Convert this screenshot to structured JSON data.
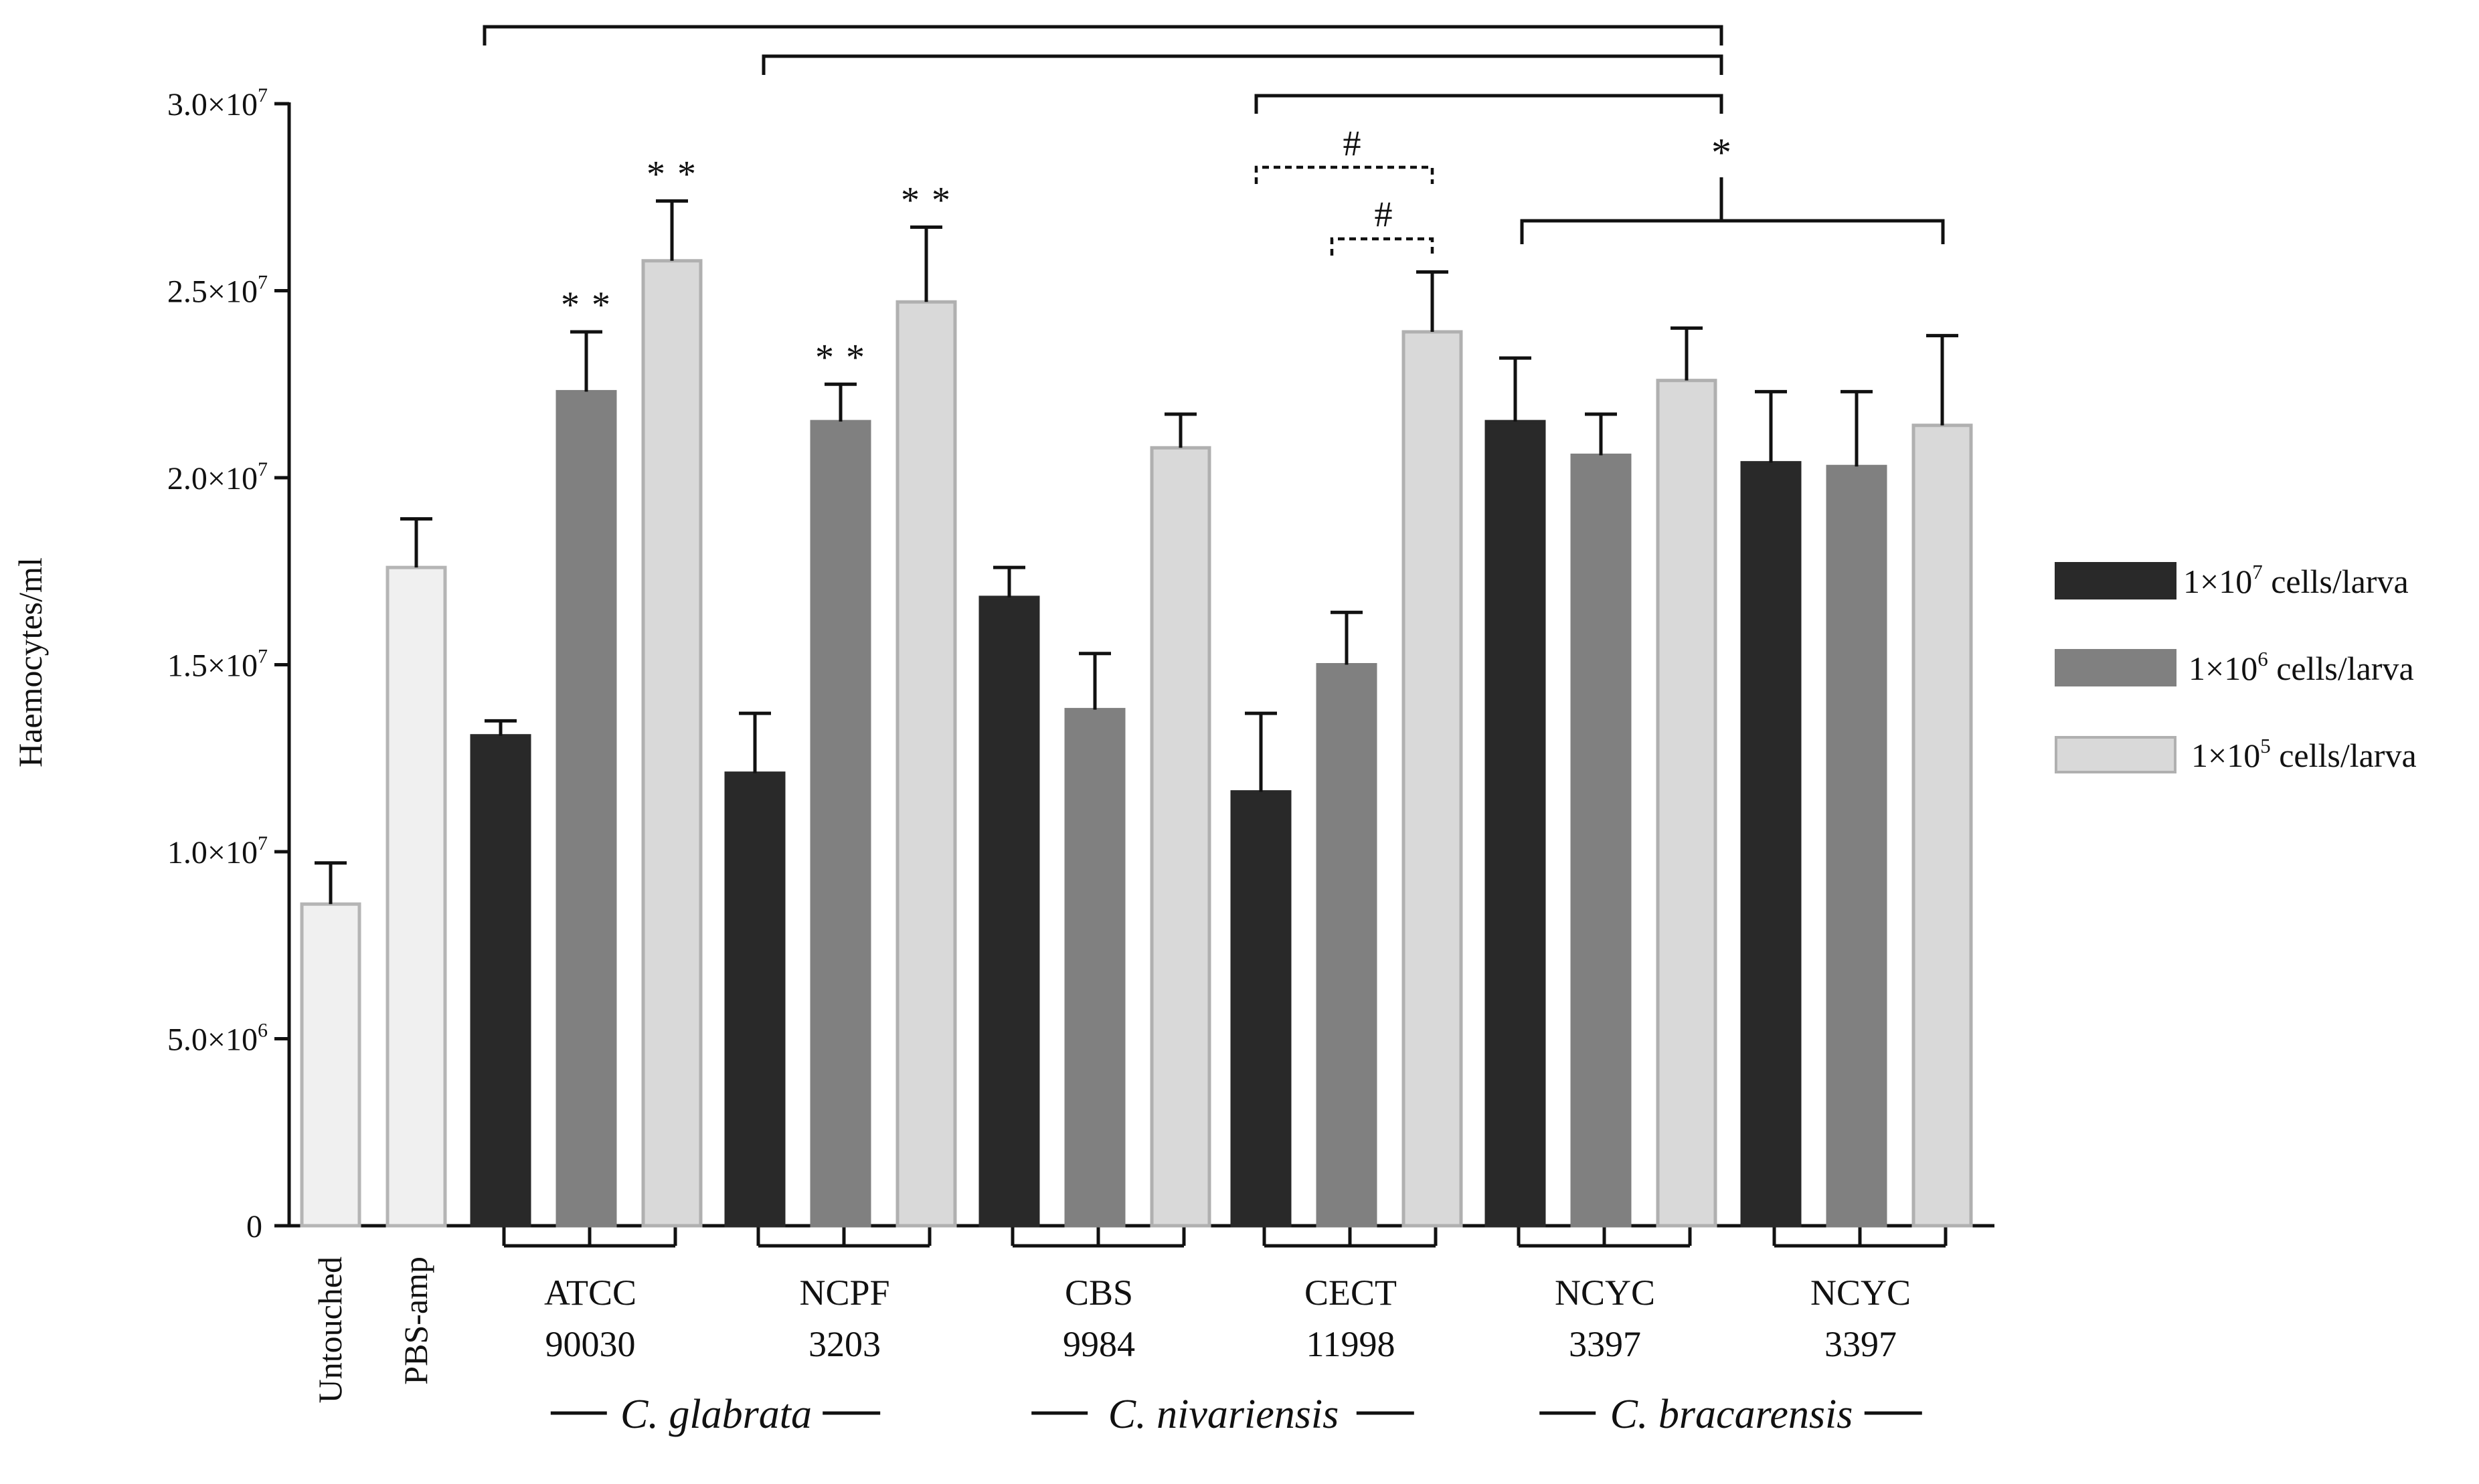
{
  "chart_data": {
    "type": "bar",
    "ylabel": "Haemocytes/ml",
    "ylim": [
      0,
      30000000
    ],
    "yticks": [
      {
        "value": 0,
        "mantissa": "0",
        "exp": ""
      },
      {
        "value": 5000000,
        "mantissa": "5.0",
        "exp": "6"
      },
      {
        "value": 10000000,
        "mantissa": "1.0",
        "exp": "7"
      },
      {
        "value": 15000000,
        "mantissa": "1.5",
        "exp": "7"
      },
      {
        "value": 20000000,
        "mantissa": "2.0",
        "exp": "7"
      },
      {
        "value": 25000000,
        "mantissa": "2.5",
        "exp": "7"
      },
      {
        "value": 30000000,
        "mantissa": "3.0",
        "exp": "7"
      }
    ],
    "times_sign": "×10",
    "colors": {
      "s1": "#292929",
      "s2": "#808080",
      "s3": "#d9d9d9",
      "control": "#f0f0f0",
      "control_edge": "#b5b5b5"
    },
    "legend": [
      {
        "prefix": "1×10",
        "exp": "7",
        "suffix": " cells/larva",
        "series": "s1"
      },
      {
        "prefix": "1×10",
        "exp": "6",
        "suffix": " cells/larva",
        "series": "s2"
      },
      {
        "prefix": "1×10",
        "exp": "5",
        "suffix": " cells/larva",
        "series": "s3"
      }
    ],
    "controls": [
      {
        "label": "Untouched",
        "value": 8600000,
        "err": 1100000
      },
      {
        "label": "PBS-amp",
        "value": 17600000,
        "err": 1300000
      }
    ],
    "strains": [
      {
        "line1": "ATCC",
        "line2": "90030",
        "values": [
          13100000,
          22300000,
          25800000
        ],
        "errors": [
          400000,
          1600000,
          1600000
        ],
        "stars": [
          "",
          "**",
          "**"
        ]
      },
      {
        "line1": "NCPF",
        "line2": "3203",
        "values": [
          12100000,
          21500000,
          24700000
        ],
        "errors": [
          1600000,
          1000000,
          2000000
        ],
        "stars": [
          "",
          "**",
          "**"
        ]
      },
      {
        "line1": "CBS",
        "line2": "9984",
        "values": [
          16800000,
          13800000,
          20800000
        ],
        "errors": [
          800000,
          1500000,
          900000
        ],
        "stars": [
          "",
          "",
          ""
        ]
      },
      {
        "line1": "CECT",
        "line2": "11998",
        "values": [
          11600000,
          15000000,
          23900000
        ],
        "errors": [
          2100000,
          1400000,
          1600000
        ],
        "stars": [
          "",
          "",
          ""
        ]
      },
      {
        "line1": "NCYC",
        "line2": "3397",
        "values": [
          21500000,
          20600000,
          22600000
        ],
        "errors": [
          1700000,
          1100000,
          1400000
        ],
        "stars": [
          "",
          "",
          ""
        ]
      },
      {
        "line1": "NCYC",
        "line2": "3397",
        "values": [
          20400000,
          20300000,
          21400000
        ],
        "errors": [
          1900000,
          2000000,
          2400000
        ],
        "stars": [
          "",
          "",
          ""
        ]
      }
    ],
    "species": [
      {
        "name": "C. glabrata",
        "strains": [
          0,
          1
        ]
      },
      {
        "name": "C. nivariensis",
        "strains": [
          2,
          3
        ]
      },
      {
        "name": "C. bracarensis",
        "strains": [
          4,
          5
        ]
      }
    ],
    "significance": {
      "top_star": "*",
      "hash_symbol": "#"
    }
  }
}
